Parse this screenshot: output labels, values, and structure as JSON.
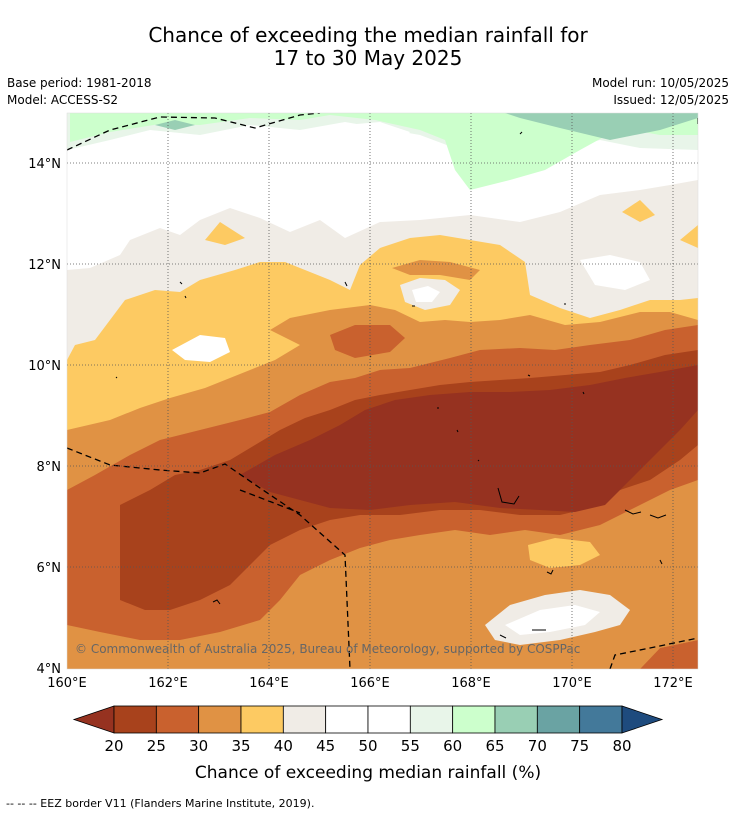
{
  "title": {
    "line1": "Chance of exceeding the median rainfall for",
    "line2": "17 to 30 May 2025"
  },
  "metadata": {
    "base_period": "Base period: 1981-2018",
    "model": "Model: ACCESS-S2",
    "model_run": "Model run: 10/05/2025",
    "issued": "Issued: 12/05/2025"
  },
  "map": {
    "lat_labels": [
      "14°N",
      "12°N",
      "10°N",
      "8°N",
      "6°N",
      "4°N"
    ],
    "lon_labels": [
      "160°E",
      "162°E",
      "164°E",
      "166°E",
      "168°E",
      "170°E",
      "172°E"
    ],
    "copyright": "© Commonwealth of Australia 2025, Bureau of Meteorology, supported by COSPPac"
  },
  "colorbar": {
    "title": "Chance of exceeding median rainfall (%)",
    "ticks": [
      "20",
      "25",
      "30",
      "35",
      "40",
      "45",
      "50",
      "55",
      "60",
      "65",
      "70",
      "75",
      "80"
    ],
    "colors": [
      "#a8421c",
      "#c9612e",
      "#e09244",
      "#fdca62",
      "#f0ece6",
      "#ffffff",
      "#ffffff",
      "#e8f5e9",
      "#ccffcc",
      "#99cfb4",
      "#6aa3a3",
      "#43799a"
    ],
    "under_color": "#963220",
    "over_color": "#1e4b7e"
  },
  "footer": {
    "eez_legend": "--  --  -- EEZ border V11 (Flanders Marine Institute, 2019)."
  }
}
